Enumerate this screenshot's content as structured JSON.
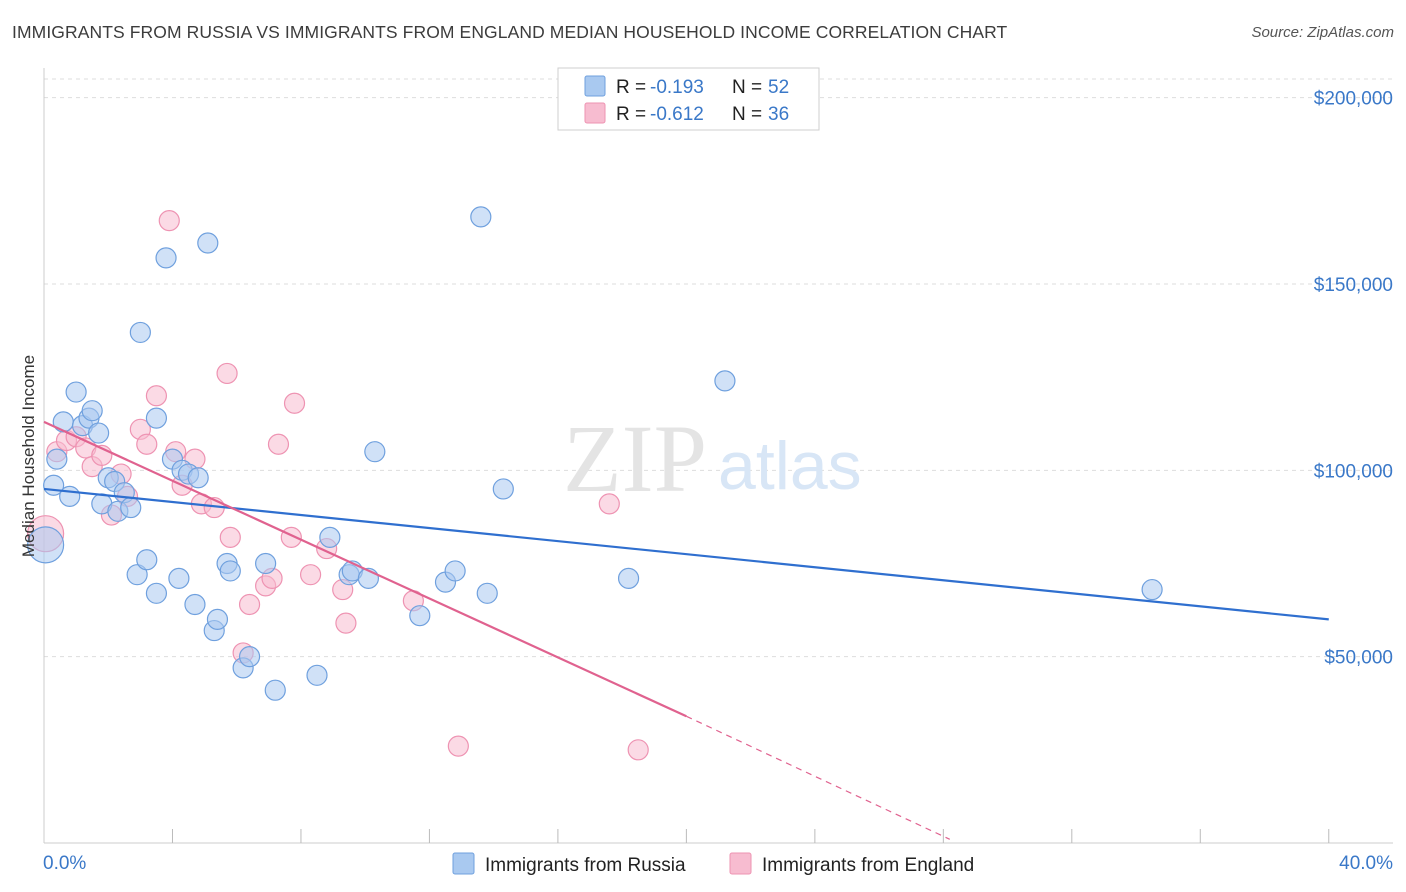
{
  "title": "IMMIGRANTS FROM RUSSIA VS IMMIGRANTS FROM ENGLAND MEDIAN HOUSEHOLD INCOME CORRELATION CHART",
  "source": "Source: ZipAtlas.com",
  "watermark": {
    "zip": "ZIP",
    "atlas": "atlas"
  },
  "colors": {
    "russia_fill": "#a9c9f0",
    "russia_stroke": "#6fa0de",
    "russia_line": "#2f6fcf",
    "england_fill": "#f7bcd0",
    "england_stroke": "#ee93b2",
    "england_line": "#e0628f",
    "axis_text": "#3a78c8",
    "grid": "#dddddd"
  },
  "legend": {
    "rows": [
      {
        "r_label": "R = ",
        "r_value": "-0.193",
        "n_label": "N = ",
        "n_value": "52"
      },
      {
        "r_label": "R = ",
        "r_value": "-0.612",
        "n_label": "N = ",
        "n_value": "36"
      }
    ]
  },
  "chart_data": {
    "type": "scatter",
    "title": "IMMIGRANTS FROM RUSSIA VS IMMIGRANTS FROM ENGLAND MEDIAN HOUSEHOLD INCOME CORRELATION CHART",
    "xlabel": "",
    "ylabel": "Median Household Income",
    "xlim": [
      0,
      42
    ],
    "ylim": [
      0,
      205000
    ],
    "x_tick_labels": [
      "0.0%",
      "40.0%"
    ],
    "y_ticks": [
      50000,
      100000,
      150000,
      200000
    ],
    "y_tick_labels": [
      "$50,000",
      "$100,000",
      "$150,000",
      "$200,000"
    ],
    "series": [
      {
        "name": "Immigrants from Russia",
        "r": -0.193,
        "n": 52,
        "trend": {
          "x0": 0,
          "y0": 95000,
          "x1": 40,
          "y1": 60000
        },
        "points": [
          [
            0.05,
            80000,
            18
          ],
          [
            0.3,
            96000,
            10
          ],
          [
            0.4,
            103000,
            10
          ],
          [
            0.6,
            113000,
            10
          ],
          [
            0.8,
            93000,
            10
          ],
          [
            1.0,
            121000,
            10
          ],
          [
            1.2,
            112000,
            10
          ],
          [
            1.4,
            114000,
            10
          ],
          [
            1.5,
            116000,
            10
          ],
          [
            1.7,
            110000,
            10
          ],
          [
            1.8,
            91000,
            10
          ],
          [
            2.0,
            98000,
            10
          ],
          [
            2.2,
            97000,
            10
          ],
          [
            2.3,
            89000,
            10
          ],
          [
            2.5,
            94000,
            10
          ],
          [
            2.7,
            90000,
            10
          ],
          [
            2.9,
            72000,
            10
          ],
          [
            3.0,
            137000,
            10
          ],
          [
            3.2,
            76000,
            10
          ],
          [
            3.5,
            114000,
            10
          ],
          [
            3.5,
            67000,
            10
          ],
          [
            3.8,
            157000,
            10
          ],
          [
            4.0,
            103000,
            10
          ],
          [
            4.2,
            71000,
            10
          ],
          [
            4.3,
            100000,
            10
          ],
          [
            4.5,
            99000,
            10
          ],
          [
            4.7,
            64000,
            10
          ],
          [
            4.8,
            98000,
            10
          ],
          [
            5.1,
            161000,
            10
          ],
          [
            5.3,
            57000,
            10
          ],
          [
            5.4,
            60000,
            10
          ],
          [
            5.7,
            75000,
            10
          ],
          [
            5.8,
            73000,
            10
          ],
          [
            6.2,
            47000,
            10
          ],
          [
            6.4,
            50000,
            10
          ],
          [
            6.9,
            75000,
            10
          ],
          [
            7.2,
            41000,
            10
          ],
          [
            8.5,
            45000,
            10
          ],
          [
            8.9,
            82000,
            10
          ],
          [
            9.5,
            72000,
            10
          ],
          [
            9.6,
            73000,
            10
          ],
          [
            10.1,
            71000,
            10
          ],
          [
            10.3,
            105000,
            10
          ],
          [
            11.7,
            61000,
            10
          ],
          [
            12.5,
            70000,
            10
          ],
          [
            12.8,
            73000,
            10
          ],
          [
            13.6,
            168000,
            10
          ],
          [
            13.8,
            67000,
            10
          ],
          [
            14.3,
            95000,
            10
          ],
          [
            18.2,
            71000,
            10
          ],
          [
            21.2,
            124000,
            10
          ],
          [
            34.5,
            68000,
            10
          ]
        ]
      },
      {
        "name": "Immigrants from England",
        "r": -0.612,
        "n": 36,
        "trend": {
          "x0": 0,
          "y0": 113000,
          "x1": 20,
          "y1": 34000
        },
        "trend_ext": {
          "x0": 20,
          "y0": 34000,
          "x1": 28.2,
          "y1": 1000
        },
        "points": [
          [
            0.05,
            83000,
            18
          ],
          [
            0.4,
            105000,
            10
          ],
          [
            0.7,
            108000,
            10
          ],
          [
            1.0,
            109000,
            10
          ],
          [
            1.3,
            106000,
            10
          ],
          [
            1.5,
            101000,
            10
          ],
          [
            1.8,
            104000,
            10
          ],
          [
            2.1,
            88000,
            10
          ],
          [
            2.4,
            99000,
            10
          ],
          [
            2.6,
            93000,
            10
          ],
          [
            3.0,
            111000,
            10
          ],
          [
            3.2,
            107000,
            10
          ],
          [
            3.5,
            120000,
            10
          ],
          [
            3.9,
            167000,
            10
          ],
          [
            4.1,
            105000,
            10
          ],
          [
            4.3,
            96000,
            10
          ],
          [
            4.7,
            103000,
            10
          ],
          [
            4.9,
            91000,
            10
          ],
          [
            5.3,
            90000,
            10
          ],
          [
            5.7,
            126000,
            10
          ],
          [
            5.8,
            82000,
            10
          ],
          [
            6.2,
            51000,
            10
          ],
          [
            6.4,
            64000,
            10
          ],
          [
            6.9,
            69000,
            10
          ],
          [
            7.1,
            71000,
            10
          ],
          [
            7.3,
            107000,
            10
          ],
          [
            7.7,
            82000,
            10
          ],
          [
            7.8,
            118000,
            10
          ],
          [
            8.3,
            72000,
            10
          ],
          [
            8.8,
            79000,
            10
          ],
          [
            9.3,
            68000,
            10
          ],
          [
            9.4,
            59000,
            10
          ],
          [
            11.5,
            65000,
            10
          ],
          [
            12.9,
            26000,
            10
          ],
          [
            17.6,
            91000,
            10
          ],
          [
            18.5,
            25000,
            10
          ]
        ]
      }
    ],
    "legend_position": "top-center"
  }
}
